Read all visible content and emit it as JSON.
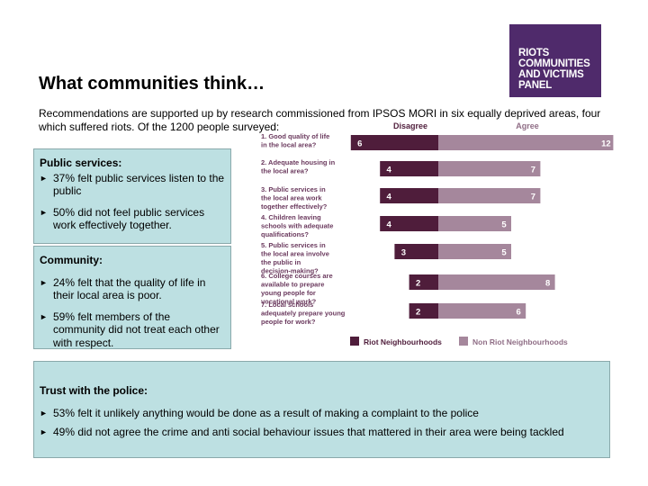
{
  "logo": {
    "lines": [
      "RIOTS",
      "COMMUNITIES",
      "AND VICTIMS",
      "PANEL"
    ]
  },
  "title": "What communities think…",
  "intro": "Recommendations are supported up by research commissioned from IPSOS MORI in six equally deprived areas, four which suffered riots. Of the 1200 people surveyed:",
  "public_services": {
    "heading": "Public services:",
    "bullets": [
      "37% felt public services listen to the public",
      "50% did not feel public services work effectively together."
    ]
  },
  "community": {
    "heading": "Community:",
    "bullets": [
      "24% felt that the quality of life in their local area is poor.",
      "59% felt members of the community did not treat each other with respect."
    ]
  },
  "police": {
    "heading": "Trust with the police:",
    "bullets": [
      "53% felt it unlikely anything would be done as a result of making a complaint to the police",
      "49% did not agree the crime and anti social behaviour issues that mattered in their area were being tackled"
    ]
  },
  "chart_data": {
    "type": "bar",
    "column_labels": [
      "Disagree",
      "Agree"
    ],
    "categories": [
      "1. Good quality of life in the local area?",
      "2. Adequate housing in the local area?",
      "3. Public services in the local area work together effectively?",
      "4. Children leaving schools with adequate qualifications?",
      "5. Public services in the local area involve the public in decision-making?",
      "6. College courses are available to prepare young people for vocational work?",
      "7. Local schools adequately prepare young people for work?"
    ],
    "series": [
      {
        "name": "Riot Neighbourhoods",
        "values": [
          6,
          4,
          4,
          4,
          3,
          2,
          2
        ],
        "color": "#4f1d3b"
      },
      {
        "name": "Non Riot Neighbourhoods",
        "values": [
          12,
          7,
          7,
          5,
          5,
          8,
          6
        ],
        "color": "#a5879c"
      }
    ],
    "legend_position": "bottom"
  }
}
